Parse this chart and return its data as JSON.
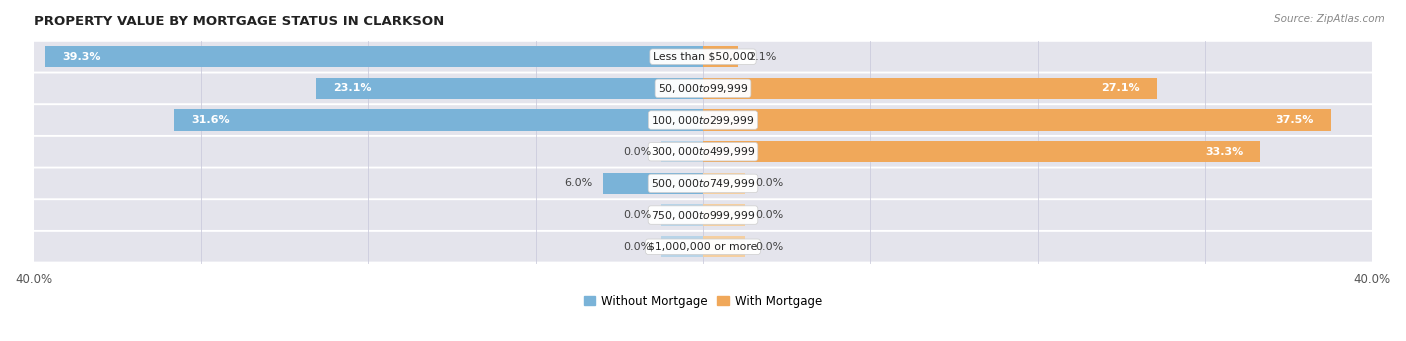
{
  "title": "PROPERTY VALUE BY MORTGAGE STATUS IN CLARKSON",
  "source": "Source: ZipAtlas.com",
  "categories": [
    "Less than $50,000",
    "$50,000 to $99,999",
    "$100,000 to $299,999",
    "$300,000 to $499,999",
    "$500,000 to $749,999",
    "$750,000 to $999,999",
    "$1,000,000 or more"
  ],
  "without_mortgage": [
    39.3,
    23.1,
    31.6,
    0.0,
    6.0,
    0.0,
    0.0
  ],
  "with_mortgage": [
    2.1,
    27.1,
    37.5,
    33.3,
    0.0,
    0.0,
    0.0
  ],
  "color_without": "#7ab3d8",
  "color_with": "#f0a85a",
  "color_without_zero": "#b8d4e8",
  "color_with_zero": "#f5cfa0",
  "xlim": 40.0,
  "bar_height": 0.68,
  "bg_bar_color": "#e4e4ec",
  "row_bg_color": "#f2f2f7",
  "title_fontsize": 9.5,
  "axis_fontsize": 8.5,
  "cat_label_fontsize": 7.8,
  "val_label_fontsize": 8,
  "legend_fontsize": 8.5,
  "source_fontsize": 7.5,
  "zero_stub": 2.5
}
